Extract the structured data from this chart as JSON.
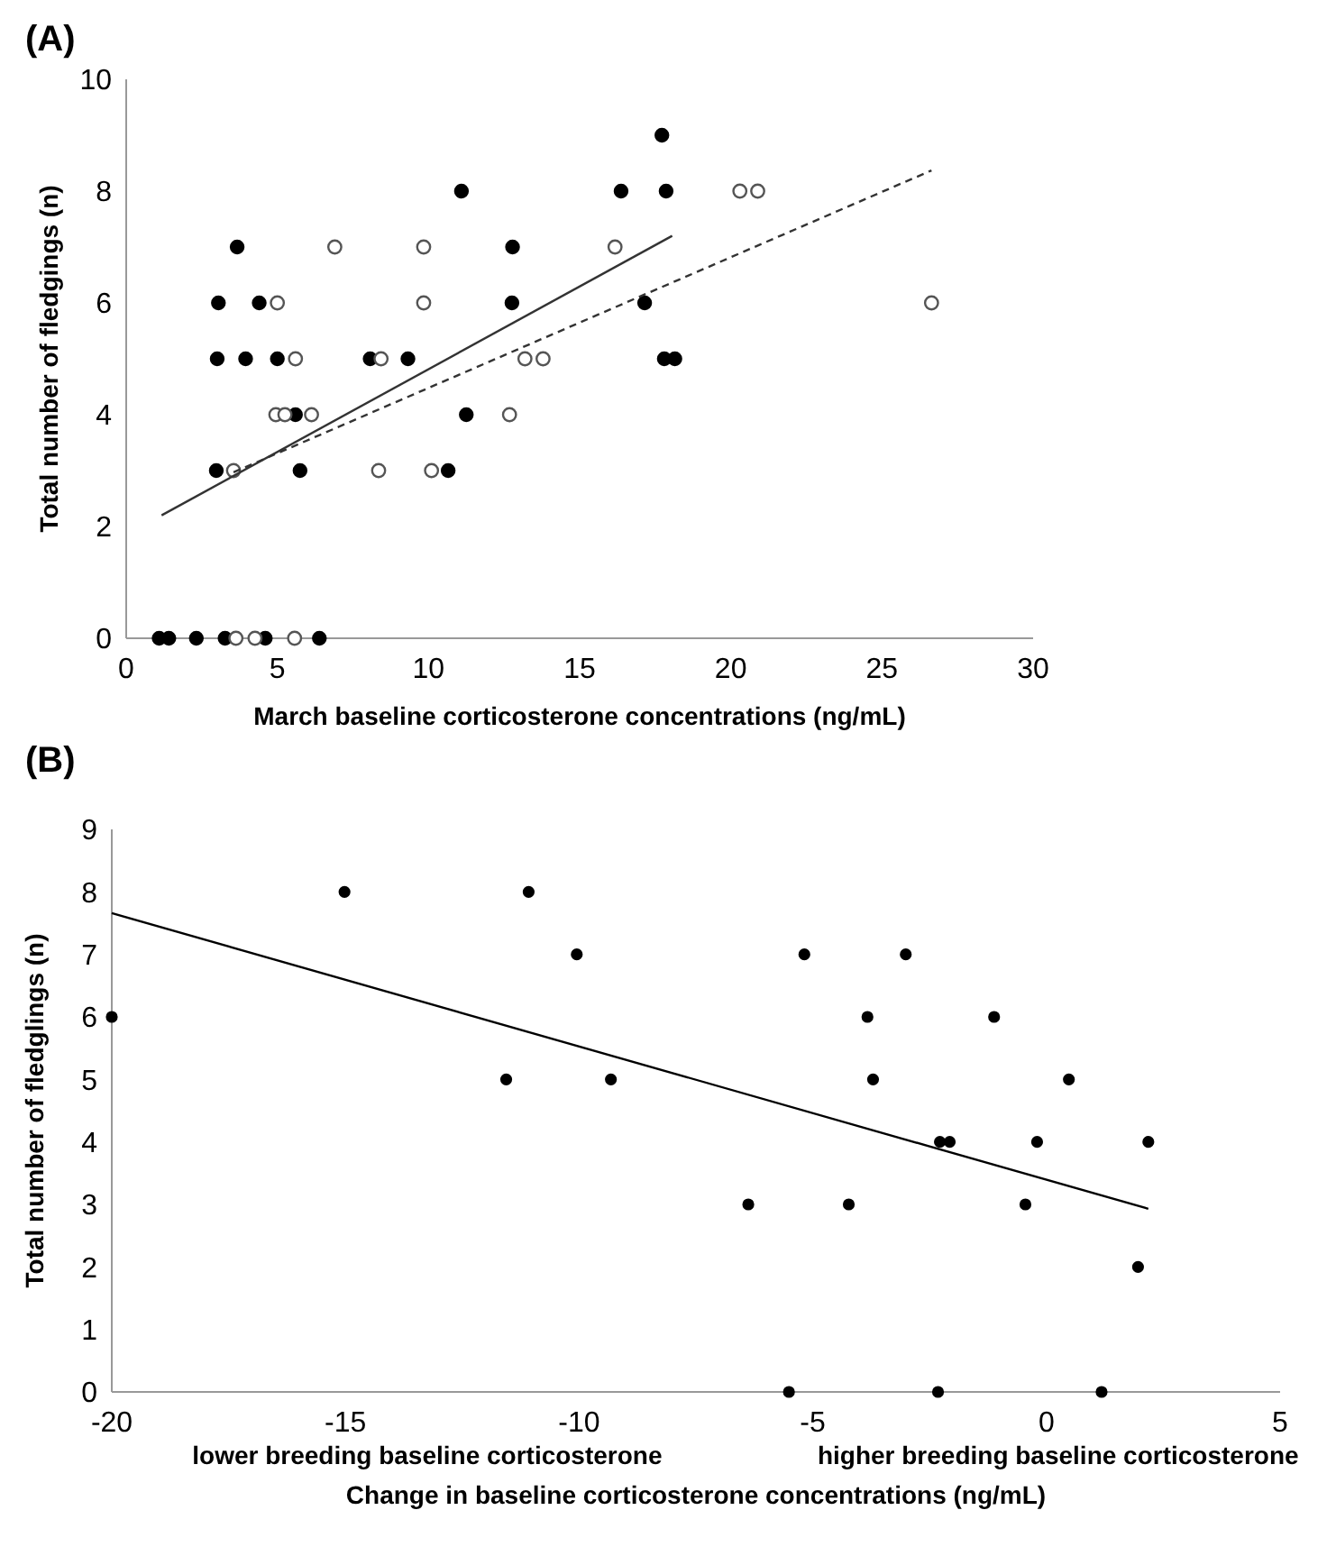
{
  "chart_data": [
    {
      "type": "scatter",
      "title": "(A)",
      "xlabel": "March baseline corticosterone concentrations (ng/mL)",
      "ylabel": "Total number of fledgings (n)",
      "xlim": [
        0,
        30
      ],
      "ylim": [
        0,
        10
      ],
      "xticks": [
        0,
        5,
        10,
        15,
        20,
        25,
        30
      ],
      "yticks": [
        0,
        2,
        4,
        6,
        8,
        10
      ],
      "grid": false,
      "series": [
        {
          "color": "#000000",
          "marker": "circle",
          "x": [
            1.09,
            1.41,
            2.32,
            3.27,
            4.6,
            6.39,
            2.98,
            5.75,
            10.65,
            5.6,
            11.25,
            3.01,
            3.95,
            5.0,
            8.07,
            9.32,
            17.8,
            18.15,
            3.05,
            4.4,
            12.76,
            17.15,
            3.67,
            12.78,
            11.09,
            16.37,
            17.86,
            17.72
          ],
          "values": [
            0,
            0,
            0,
            0,
            0,
            0,
            3,
            3,
            3,
            4,
            4,
            5,
            5,
            5,
            5,
            5,
            5,
            5,
            6,
            6,
            6,
            6,
            7,
            7,
            8,
            8,
            8,
            9
          ]
        },
        {
          "color": "#555555",
          "marker": "circle",
          "x": [
            3.63,
            4.26,
            5.57,
            3.55,
            8.35,
            10.1,
            4.95,
            5.25,
            6.13,
            12.68,
            5.6,
            8.43,
            13.19,
            13.79,
            5.0,
            9.84,
            26.64,
            6.9,
            9.84,
            16.17,
            20.3,
            20.89
          ],
          "values": [
            0,
            0,
            0,
            3,
            3,
            3,
            4,
            4,
            4,
            4,
            5,
            5,
            5,
            5,
            6,
            6,
            6,
            7,
            7,
            7,
            8,
            8
          ]
        },
        {
          "type": "line",
          "color": "#333333",
          "line_style": "solid",
          "x": [
            1.17,
            18.06
          ],
          "values": [
            2.2,
            7.2
          ]
        },
        {
          "type": "line",
          "color": "#333333",
          "line_style": "dashed",
          "x": [
            3.55,
            26.64
          ],
          "values": [
            2.97,
            8.37
          ]
        }
      ]
    },
    {
      "type": "scatter",
      "title": "(B)",
      "xlabel": "Change in baseline corticosterone concentrations (ng/mL)",
      "ylabel": "Total number of fledglings (n)",
      "xlim": [
        -20,
        5
      ],
      "ylim": [
        0,
        9
      ],
      "xticks": [
        -20,
        -15,
        -10,
        -5,
        0,
        5
      ],
      "yticks": [
        0,
        1,
        2,
        3,
        4,
        5,
        6,
        7,
        8,
        9
      ],
      "grid": false,
      "annotations": [
        "lower breeding baseline corticosterone",
        "higher breeding baseline corticosterone"
      ],
      "series": [
        {
          "color": "#000000",
          "marker": "circle",
          "x": [
            -20,
            -15.02,
            -11.08,
            -10.05,
            -11.56,
            -9.32,
            -5.18,
            -3.01,
            -3.83,
            -1.12,
            -3.71,
            0.48,
            -2.28,
            -2.07,
            -0.2,
            2.18,
            -6.38,
            -4.23,
            -0.45,
            1.96,
            -5.51,
            -2.32,
            1.18
          ],
          "values": [
            6,
            8,
            8,
            7,
            5,
            5,
            7,
            7,
            6,
            6,
            5,
            5,
            4,
            4,
            4,
            4,
            3,
            3,
            3,
            2,
            0,
            0,
            0
          ]
        },
        {
          "type": "line",
          "color": "#000000",
          "line_style": "solid",
          "x": [
            -20,
            2.18
          ],
          "values": [
            7.66,
            2.93
          ]
        }
      ]
    }
  ]
}
